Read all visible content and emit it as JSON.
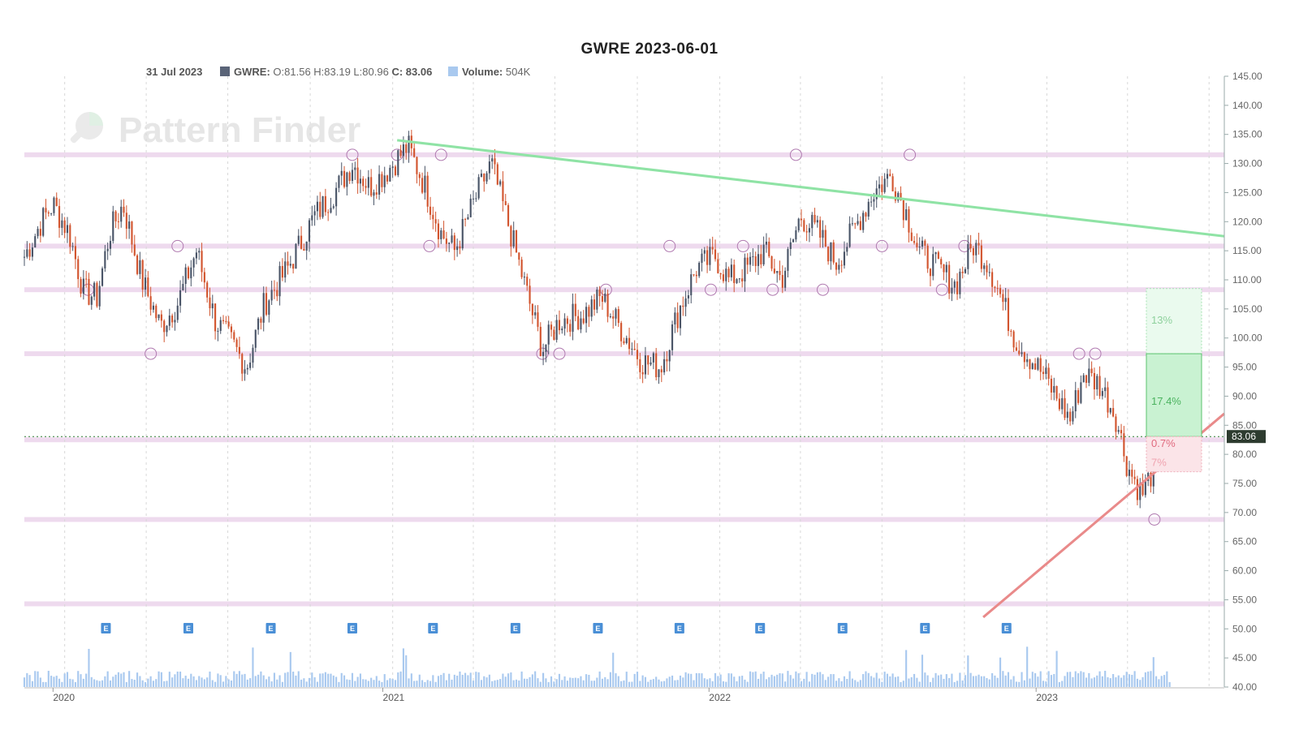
{
  "chart_data": {
    "type": "candlestick",
    "title": "GWRE 2023-06-01",
    "ticker": "GWRE",
    "info": {
      "date": "31 Jul 2023",
      "ohlc_label": "GWRE:",
      "ohlc_text": "O:81.56 H:83.19 L:80.96",
      "close_label": "C: 83.06",
      "volume_label": "Volume:",
      "volume_value": "504K"
    },
    "watermark": "Pattern Finder",
    "ylim": [
      40,
      145
    ],
    "y_ticks": [
      "145.00",
      "140.00",
      "135.00",
      "130.00",
      "125.00",
      "120.00",
      "115.00",
      "110.00",
      "105.00",
      "100.00",
      "95.00",
      "90.00",
      "85.00",
      "80.00",
      "75.00",
      "70.00",
      "65.00",
      "60.00",
      "55.00",
      "50.00",
      "45.00",
      "40.00"
    ],
    "x_ticks": [
      {
        "label": "2020",
        "x": "2020-01-02"
      },
      {
        "label": "2021",
        "x": "2021-01-04"
      },
      {
        "label": "2022",
        "x": "2022-01-03"
      },
      {
        "label": "2023",
        "x": "2023-01-03"
      }
    ],
    "x_range": [
      "2019-12-01",
      "2023-08-01"
    ],
    "last_price": "83.06",
    "price_path": [
      [
        "2019-12-01",
        114
      ],
      [
        "2019-12-20",
        120
      ],
      [
        "2020-01-02",
        123
      ],
      [
        "2020-01-20",
        118
      ],
      [
        "2020-02-05",
        108
      ],
      [
        "2020-02-20",
        107
      ],
      [
        "2020-03-05",
        118
      ],
      [
        "2020-03-20",
        123
      ],
      [
        "2020-04-10",
        110
      ],
      [
        "2020-05-01",
        102
      ],
      [
        "2020-05-20",
        106
      ],
      [
        "2020-06-10",
        115
      ],
      [
        "2020-07-01",
        103
      ],
      [
        "2020-07-20",
        99
      ],
      [
        "2020-08-05",
        95
      ],
      [
        "2020-08-25",
        106
      ],
      [
        "2020-09-20",
        112
      ],
      [
        "2020-10-20",
        121
      ],
      [
        "2020-11-15",
        126
      ],
      [
        "2020-12-01",
        130
      ],
      [
        "2020-12-20",
        126
      ],
      [
        "2021-01-10",
        129
      ],
      [
        "2021-02-01",
        133
      ],
      [
        "2021-02-20",
        126
      ],
      [
        "2021-03-10",
        118
      ],
      [
        "2021-03-25",
        115
      ],
      [
        "2021-04-20",
        125
      ],
      [
        "2021-05-05",
        130
      ],
      [
        "2021-05-25",
        119
      ],
      [
        "2021-06-15",
        107
      ],
      [
        "2021-07-01",
        98
      ],
      [
        "2021-07-20",
        103
      ],
      [
        "2021-08-15",
        104
      ],
      [
        "2021-09-05",
        107
      ],
      [
        "2021-09-25",
        102
      ],
      [
        "2021-10-20",
        96
      ],
      [
        "2021-11-10",
        95
      ],
      [
        "2021-12-01",
        105
      ],
      [
        "2021-12-20",
        112
      ],
      [
        "2022-01-10",
        114
      ],
      [
        "2022-01-25",
        110
      ],
      [
        "2022-02-15",
        112
      ],
      [
        "2022-03-05",
        115
      ],
      [
        "2022-03-25",
        110
      ],
      [
        "2022-04-15",
        121
      ],
      [
        "2022-05-05",
        118
      ],
      [
        "2022-05-25",
        113
      ],
      [
        "2022-06-15",
        119
      ],
      [
        "2022-07-05",
        125
      ],
      [
        "2022-07-25",
        128
      ],
      [
        "2022-08-10",
        122
      ],
      [
        "2022-08-25",
        115
      ],
      [
        "2022-09-15",
        112
      ],
      [
        "2022-10-05",
        109
      ],
      [
        "2022-10-25",
        116
      ],
      [
        "2022-11-10",
        113
      ],
      [
        "2022-11-25",
        107
      ],
      [
        "2022-12-10",
        100
      ],
      [
        "2022-12-25",
        97
      ],
      [
        "2023-01-10",
        94
      ],
      [
        "2023-01-25",
        90
      ],
      [
        "2023-02-10",
        86
      ],
      [
        "2023-02-25",
        94
      ],
      [
        "2023-03-15",
        92
      ],
      [
        "2023-04-01",
        87
      ],
      [
        "2023-04-15",
        78
      ],
      [
        "2023-05-01",
        73
      ],
      [
        "2023-05-15",
        78
      ],
      [
        "2023-06-01",
        82
      ]
    ],
    "horizontal_levels": [
      131.5,
      115.8,
      108.3,
      97.3,
      82.5,
      68.8,
      54.3
    ],
    "trendlines": [
      {
        "color": "#8fe3a5",
        "from": [
          "2021-01-20",
          134
        ],
        "to": [
          "2023-08-01",
          117.5
        ]
      },
      {
        "color": "#e98a8a",
        "from": [
          "2022-11-05",
          52
        ],
        "to": [
          "2023-08-01",
          87
        ]
      }
    ],
    "projection": {
      "up_target": "13%",
      "up_near": "17.4%",
      "down_near": "0.7%",
      "down_target": "7%"
    },
    "earnings_marker": "E",
    "earnings_dates": [
      "2020-03-01",
      "2020-06-01",
      "2020-09-01",
      "2020-12-01",
      "2021-03-01",
      "2021-06-01",
      "2021-09-01",
      "2021-12-01",
      "2022-03-01",
      "2022-06-01",
      "2022-09-01",
      "2022-12-01"
    ],
    "colors": {
      "up": "#4a5568",
      "down": "#d2552f",
      "volume": "#a9c9ef",
      "level": "#ecd6ec",
      "last_price_bg": "#2d3b2f",
      "dotted_price": "#2e7d32"
    }
  }
}
